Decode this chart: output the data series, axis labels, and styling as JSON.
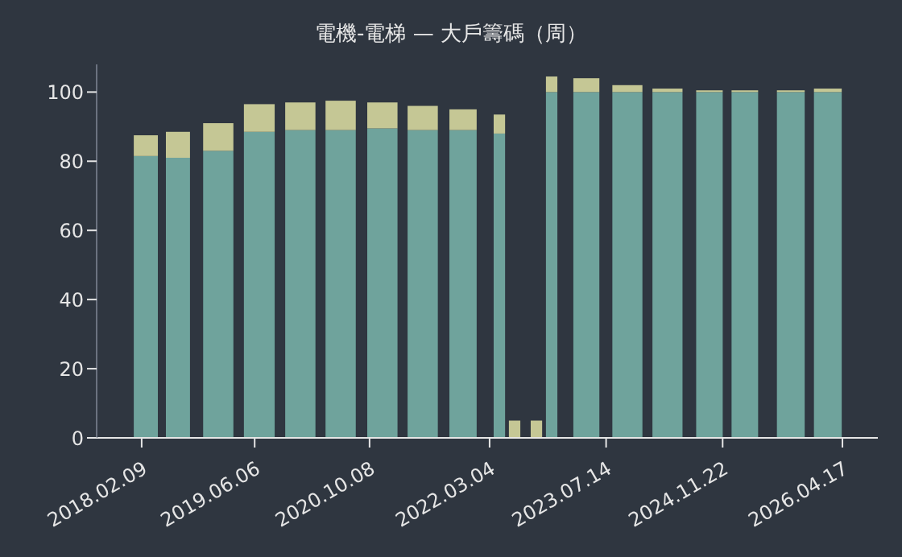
{
  "chart_data": {
    "type": "bar",
    "title": "電機-電梯 — 大戶籌碼（周）",
    "stacked": true,
    "x": [
      "2018-03-02",
      "2018-07-17",
      "2019-01-05",
      "2019-06-29",
      "2019-12-21",
      "2020-06-10",
      "2020-12-05",
      "2021-05-26",
      "2021-11-14",
      "2022-04-18",
      "2022-06-22",
      "2022-09-23",
      "2022-11-27",
      "2023-04-24",
      "2023-10-16",
      "2024-04-04",
      "2024-09-30",
      "2025-02-28",
      "2025-09-12",
      "2026-02-17"
    ],
    "series": [
      {
        "color": "#6fa39c",
        "values": [
          81.5,
          81,
          83,
          88.5,
          89,
          89,
          89.5,
          89,
          89,
          88,
          0,
          0,
          100,
          100,
          100,
          100,
          100,
          100,
          100,
          100
        ]
      },
      {
        "color": "#c5c795",
        "values": [
          6,
          7.5,
          8,
          8,
          8,
          8.5,
          7.5,
          7,
          6,
          5.5,
          5,
          5,
          4.5,
          4,
          2,
          1,
          0.5,
          0.5,
          0.5,
          1
        ]
      }
    ],
    "xlim": [
      "2017-08-01",
      "2026-09-15"
    ],
    "xticks": [
      {
        "value": "2018-02-09",
        "label": "2018.02.09"
      },
      {
        "value": "2019-06-06",
        "label": "2019.06.06"
      },
      {
        "value": "2020-10-08",
        "label": "2020.10.08"
      },
      {
        "value": "2022-03-04",
        "label": "2022.03.04"
      },
      {
        "value": "2023-07-14",
        "label": "2023.07.14"
      },
      {
        "value": "2024-11-22",
        "label": "2024.11.22"
      },
      {
        "value": "2026-04-17",
        "label": "2026.04.17"
      }
    ],
    "ylim": [
      0,
      108
    ],
    "yticks": [
      0,
      20,
      40,
      60,
      80,
      100
    ],
    "grid": false
  }
}
